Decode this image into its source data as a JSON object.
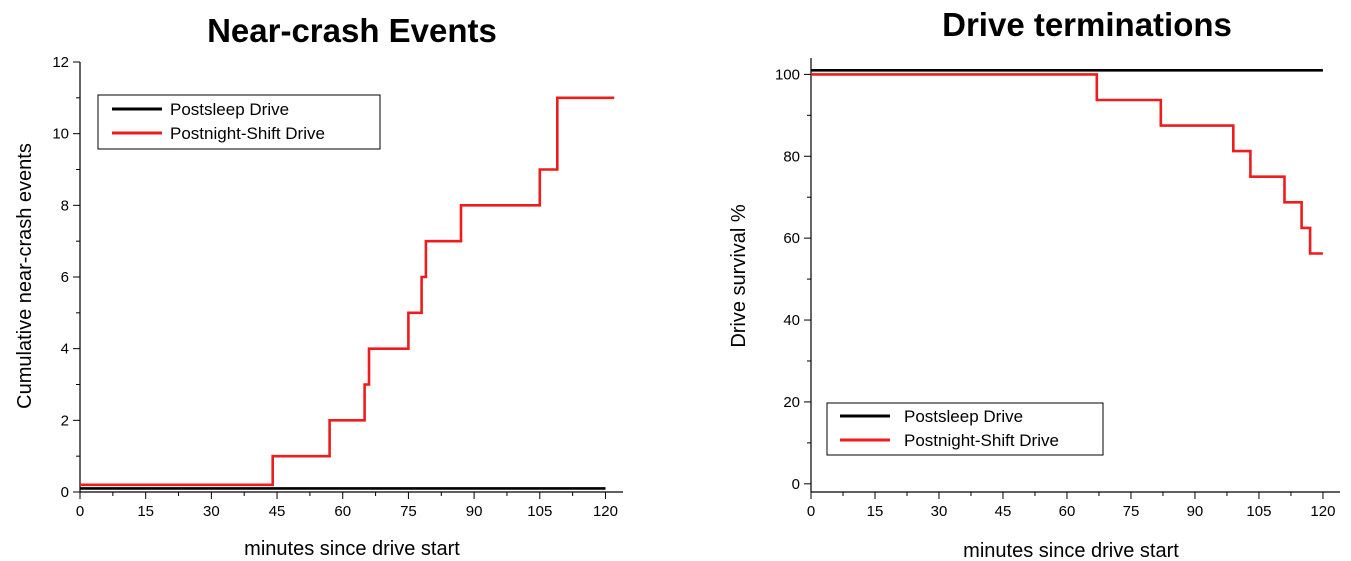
{
  "chart_data": [
    {
      "type": "line",
      "step": true,
      "title": "Near-crash Events",
      "xlabel": "minutes since drive start",
      "ylabel": "Cumulative near-crash events",
      "xlim": [
        0,
        124
      ],
      "ylim": [
        0,
        12
      ],
      "xticks": [
        0,
        15,
        30,
        45,
        60,
        75,
        90,
        105,
        120
      ],
      "yticks": [
        0,
        2,
        4,
        6,
        8,
        10,
        12
      ],
      "grid": false,
      "legend": "top-left",
      "series": [
        {
          "name": "Postsleep Drive",
          "color": "#000000",
          "x": [
            0,
            120
          ],
          "y": [
            0.1,
            0.1
          ]
        },
        {
          "name": "Postnight-Shift Drive",
          "color": "#ee1c1c",
          "x": [
            0,
            44,
            44,
            57,
            57,
            65,
            65,
            66,
            66,
            75,
            75,
            78,
            78,
            79,
            79,
            87,
            87,
            105,
            105,
            109,
            109,
            122
          ],
          "y": [
            0.2,
            0.2,
            1,
            1,
            2,
            2,
            3,
            3,
            4,
            4,
            5,
            5,
            6,
            6,
            7,
            7,
            8,
            8,
            9,
            9,
            11,
            11
          ]
        }
      ]
    },
    {
      "type": "line",
      "step": true,
      "title": "Drive terminations",
      "xlabel": "minutes since drive start",
      "ylabel": "Drive survival %",
      "xlim": [
        0,
        124
      ],
      "ylim": [
        -2,
        104
      ],
      "xticks": [
        0,
        15,
        30,
        45,
        60,
        75,
        90,
        105,
        120
      ],
      "yticks": [
        0,
        20,
        40,
        60,
        80,
        100
      ],
      "grid": false,
      "legend": "bottom-left",
      "series": [
        {
          "name": "Postsleep Drive",
          "color": "#000000",
          "x": [
            0,
            120
          ],
          "y": [
            101,
            101
          ]
        },
        {
          "name": "Postnight-Shift Drive",
          "color": "#ee1c1c",
          "x": [
            0,
            67,
            67,
            82,
            82,
            99,
            99,
            103,
            103,
            111,
            111,
            115,
            115,
            117,
            117,
            120
          ],
          "y": [
            100,
            100,
            93.75,
            93.75,
            87.5,
            87.5,
            81.25,
            81.25,
            75,
            75,
            68.75,
            68.75,
            62.5,
            62.5,
            56.25,
            56.25
          ]
        }
      ]
    }
  ]
}
